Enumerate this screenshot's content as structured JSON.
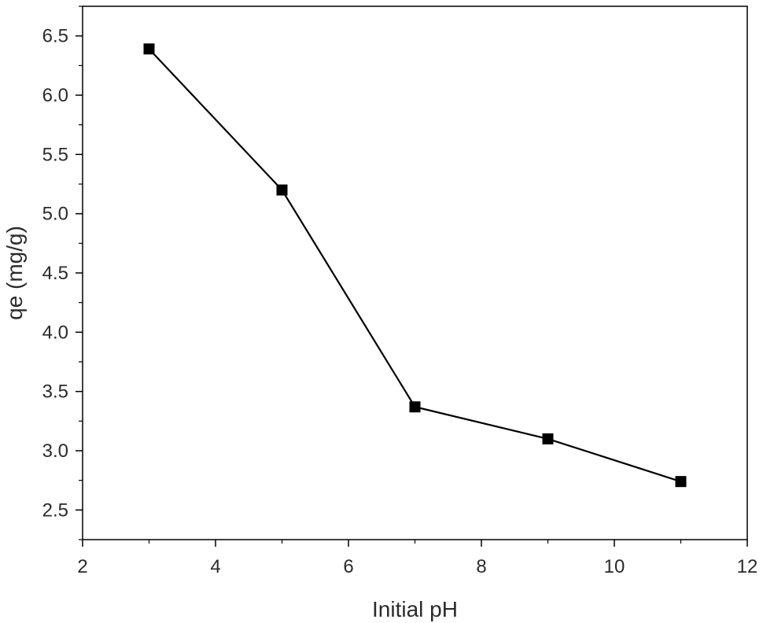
{
  "chart_data": {
    "type": "line",
    "title": "",
    "xlabel": "Initial pH",
    "ylabel": "qe (mg/g)",
    "xlim": [
      2,
      12
    ],
    "ylim": [
      2.25,
      6.75
    ],
    "x_ticks": [
      2,
      4,
      6,
      8,
      10,
      12
    ],
    "y_ticks": [
      2.5,
      3.0,
      3.5,
      4.0,
      4.5,
      5.0,
      5.5,
      6.0,
      6.5
    ],
    "y_tick_labels": [
      "2.5",
      "3.0",
      "3.5",
      "4.0",
      "4.5",
      "5.0",
      "5.5",
      "6.0",
      "6.5"
    ],
    "grid": false,
    "legend": false,
    "marker": "square",
    "series": [
      {
        "x": [
          3,
          5,
          7,
          9,
          11
        ],
        "y": [
          6.39,
          5.2,
          3.37,
          3.1,
          2.74
        ],
        "color": "#000000"
      }
    ]
  }
}
